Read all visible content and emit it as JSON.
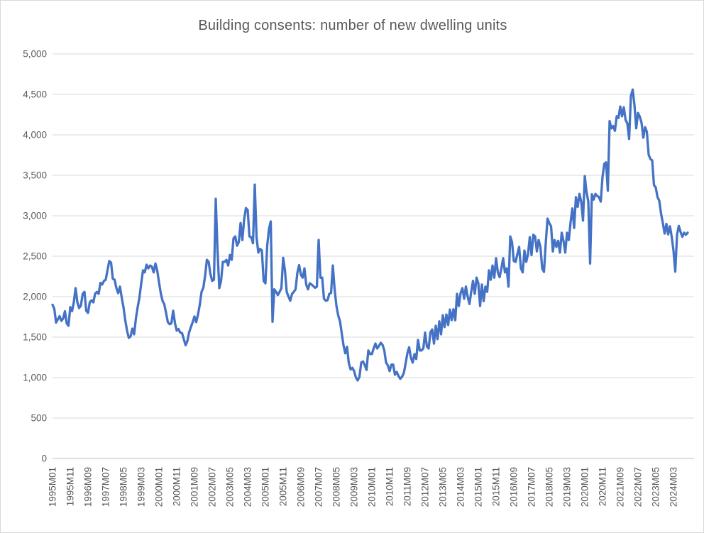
{
  "colors": {
    "line": "#4472C4",
    "gridline": "#D9D9D9",
    "axis_line": "#BFBFBF",
    "tick_text": "#595959",
    "title_text": "#595959",
    "background": "#FFFFFF"
  },
  "chart_data": {
    "type": "line",
    "title": "Building consents: number of new dwelling units",
    "xlabel": "",
    "ylabel": "",
    "legend": "none",
    "grid": "horizontal",
    "ylim": [
      0,
      5000
    ],
    "y_ticks": [
      {
        "value": 0,
        "label": "0"
      },
      {
        "value": 500,
        "label": "500"
      },
      {
        "value": 1000,
        "label": "1,000"
      },
      {
        "value": 1500,
        "label": "1,500"
      },
      {
        "value": 2000,
        "label": "2,000"
      },
      {
        "value": 2500,
        "label": "2,500"
      },
      {
        "value": 3000,
        "label": "3,000"
      },
      {
        "value": 3500,
        "label": "3,500"
      },
      {
        "value": 4000,
        "label": "4,000"
      },
      {
        "value": 4500,
        "label": "4,500"
      },
      {
        "value": 5000,
        "label": "5,000"
      }
    ],
    "x_start": "1995M01",
    "x_end": "2024M11",
    "x_tick_every": 10,
    "x_tick_labels": [
      "1995M01",
      "1995M11",
      "1996M09",
      "1997M07",
      "1998M05",
      "1999M03",
      "2000M01",
      "2000M11",
      "2001M09",
      "2002M07",
      "2003M05",
      "2004M03",
      "2005M01",
      "2005M11",
      "2006M09",
      "2007M07",
      "2008M05",
      "2009M03",
      "2010M01",
      "2010M11",
      "2011M09",
      "2012M07",
      "2013M05",
      "2014M03",
      "2015M01",
      "2015M11",
      "2016M09",
      "2017M07",
      "2018M05",
      "2019M03",
      "2020M01",
      "2020M11",
      "2021M09",
      "2022M07",
      "2023M05",
      "2024M03"
    ],
    "values": [
      1900,
      1850,
      1680,
      1720,
      1760,
      1700,
      1730,
      1820,
      1670,
      1640,
      1870,
      1820,
      1930,
      2105,
      1930,
      1860,
      1890,
      2035,
      2060,
      1825,
      1800,
      1930,
      1955,
      1930,
      2035,
      2060,
      2035,
      2170,
      2150,
      2195,
      2210,
      2330,
      2440,
      2420,
      2220,
      2210,
      2105,
      2045,
      2125,
      1990,
      1870,
      1710,
      1580,
      1490,
      1510,
      1605,
      1535,
      1730,
      1870,
      1990,
      2165,
      2325,
      2300,
      2395,
      2350,
      2385,
      2370,
      2300,
      2410,
      2325,
      2180,
      2045,
      1950,
      1905,
      1800,
      1685,
      1660,
      1670,
      1825,
      1675,
      1580,
      1600,
      1555,
      1550,
      1475,
      1400,
      1450,
      1560,
      1625,
      1685,
      1755,
      1685,
      1780,
      1900,
      2060,
      2110,
      2255,
      2455,
      2430,
      2280,
      2195,
      2210,
      3210,
      2570,
      2105,
      2195,
      2430,
      2430,
      2455,
      2385,
      2515,
      2455,
      2720,
      2745,
      2630,
      2675,
      2910,
      2700,
      2955,
      3095,
      3070,
      2745,
      2735,
      2660,
      3385,
      2735,
      2545,
      2590,
      2570,
      2195,
      2165,
      2630,
      2835,
      2930,
      1690,
      2090,
      2060,
      2020,
      2060,
      2105,
      2480,
      2325,
      2060,
      2000,
      1950,
      2035,
      2060,
      2090,
      2295,
      2390,
      2270,
      2235,
      2350,
      2150,
      2090,
      2165,
      2150,
      2130,
      2110,
      2125,
      2700,
      2235,
      2235,
      1975,
      1950,
      1955,
      2035,
      2045,
      2385,
      2090,
      1890,
      1770,
      1700,
      1550,
      1400,
      1300,
      1380,
      1180,
      1100,
      1120,
      1080,
      1000,
      965,
      1010,
      1185,
      1200,
      1155,
      1095,
      1335,
      1290,
      1290,
      1360,
      1420,
      1360,
      1390,
      1430,
      1405,
      1335,
      1185,
      1150,
      1080,
      1160,
      1160,
      1035,
      1070,
      1020,
      985,
      1010,
      1055,
      1170,
      1300,
      1375,
      1245,
      1185,
      1290,
      1230,
      1465,
      1335,
      1335,
      1360,
      1555,
      1385,
      1360,
      1560,
      1595,
      1420,
      1640,
      1475,
      1695,
      1535,
      1770,
      1625,
      1780,
      1650,
      1840,
      1710,
      1845,
      1710,
      2035,
      1885,
      2045,
      2105,
      1975,
      2125,
      2000,
      1910,
      2060,
      2195,
      2035,
      2235,
      2165,
      1885,
      2150,
      1945,
      2125,
      2060,
      2325,
      2210,
      2385,
      2235,
      2475,
      2300,
      2240,
      2350,
      2475,
      2300,
      2350,
      2125,
      2745,
      2675,
      2440,
      2430,
      2525,
      2615,
      2350,
      2300,
      2570,
      2430,
      2525,
      2735,
      2515,
      2765,
      2745,
      2560,
      2700,
      2615,
      2350,
      2305,
      2660,
      2965,
      2910,
      2870,
      2560,
      2700,
      2615,
      2690,
      2545,
      2790,
      2690,
      2545,
      2790,
      2700,
      2920,
      3090,
      2850,
      3230,
      3110,
      3270,
      3175,
      2940,
      3490,
      3290,
      3175,
      2410,
      3265,
      3200,
      3270,
      3245,
      3230,
      3175,
      3480,
      3640,
      3660,
      3310,
      4170,
      4080,
      4110,
      4050,
      4230,
      4210,
      4350,
      4230,
      4340,
      4185,
      4140,
      3950,
      4480,
      4560,
      4370,
      4080,
      4270,
      4225,
      4150,
      3965,
      4095,
      4035,
      3755,
      3700,
      3685,
      3380,
      3350,
      3230,
      3185,
      3025,
      2910,
      2780,
      2900,
      2770,
      2870,
      2740,
      2570,
      2310,
      2765,
      2875,
      2800,
      2740,
      2790,
      2765,
      2790
    ]
  }
}
